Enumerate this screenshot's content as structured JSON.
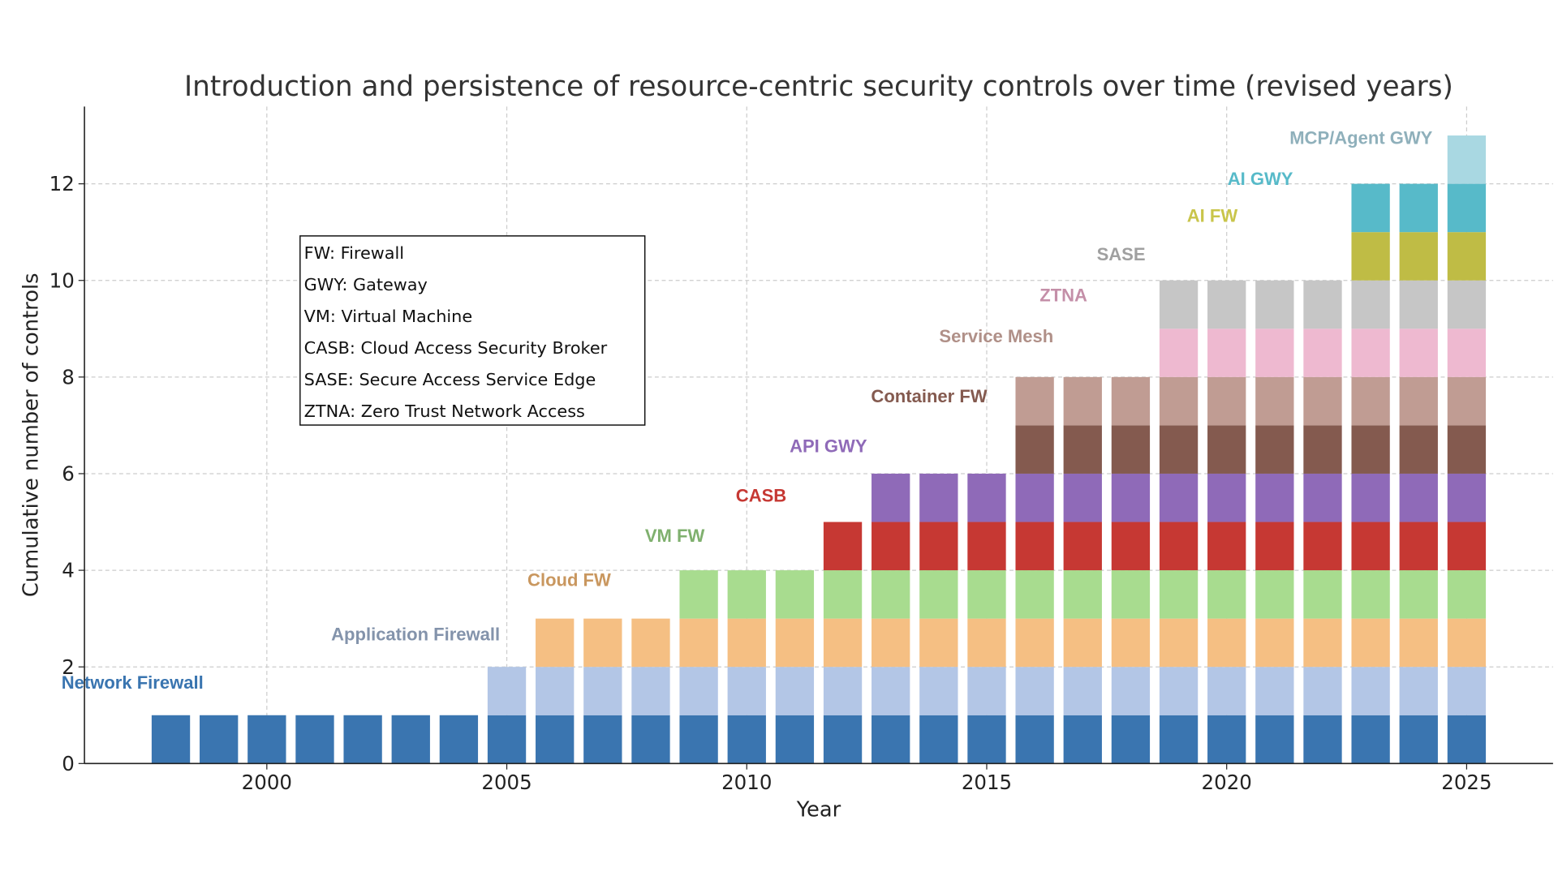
{
  "chart_data": {
    "type": "bar",
    "stacked": true,
    "title": "Introduction and persistence of resource-centric security controls over time (revised years)",
    "xlabel": "Year",
    "ylabel": "Cumulative number of controls",
    "xlim": [
      1996.2,
      2026.8
    ],
    "ylim": [
      0,
      13.6
    ],
    "xticks": [
      2000,
      2005,
      2010,
      2015,
      2020,
      2025
    ],
    "yticks": [
      0,
      2,
      4,
      6,
      8,
      10,
      12
    ],
    "grid": true,
    "years": [
      1998,
      1999,
      2000,
      2001,
      2002,
      2003,
      2004,
      2005,
      2006,
      2007,
      2008,
      2009,
      2010,
      2011,
      2012,
      2013,
      2014,
      2015,
      2016,
      2017,
      2018,
      2019,
      2020,
      2021,
      2022,
      2023,
      2024,
      2025
    ],
    "series": [
      {
        "name": "Network Firewall",
        "start_year": 1998,
        "color": "#3a75b0",
        "label_color": "#3a75b0",
        "label_x": 1997.2,
        "label_y": 1.67
      },
      {
        "name": "Application Firewall",
        "start_year": 2005,
        "color": "#b3c6e6",
        "label_color": "#8393ab",
        "label_x": 2003.1,
        "label_y": 2.67
      },
      {
        "name": "Cloud FW",
        "start_year": 2006,
        "color": "#f5bf83",
        "label_color": "#c9975f",
        "label_x": 2006.3,
        "label_y": 3.8
      },
      {
        "name": "VM FW",
        "start_year": 2009,
        "color": "#a8dc8f",
        "label_color": "#7fb06e",
        "label_x": 2008.5,
        "label_y": 4.71
      },
      {
        "name": "CASB",
        "start_year": 2012,
        "color": "#c63833",
        "label_color": "#c63833",
        "label_x": 2010.3,
        "label_y": 5.54
      },
      {
        "name": "API GWY",
        "start_year": 2013,
        "color": "#8f6ab8",
        "label_color": "#8f6ab8",
        "label_x": 2011.7,
        "label_y": 6.57
      },
      {
        "name": "Container FW",
        "start_year": 2016,
        "color": "#845a4f",
        "label_color": "#845a4f",
        "label_x": 2013.8,
        "label_y": 7.6
      },
      {
        "name": "Service Mesh",
        "start_year": 2016,
        "color": "#c09c93",
        "label_color": "#b09088",
        "label_x": 2015.2,
        "label_y": 8.84
      },
      {
        "name": "ZTNA",
        "start_year": 2019,
        "color": "#eeb9d0",
        "label_color": "#c48fa8",
        "label_x": 2016.6,
        "label_y": 9.69
      },
      {
        "name": "SASE",
        "start_year": 2019,
        "color": "#c6c6c6",
        "label_color": "#a0a0a0",
        "label_x": 2017.8,
        "label_y": 10.54
      },
      {
        "name": "AI FW",
        "start_year": 2023,
        "color": "#bfbc45",
        "label_color": "#c9c54a",
        "label_x": 2019.7,
        "label_y": 11.34
      },
      {
        "name": "AI GWY",
        "start_year": 2023,
        "color": "#57bac9",
        "label_color": "#57bac9",
        "label_x": 2020.7,
        "label_y": 12.1
      },
      {
        "name": "MCP/Agent GWY",
        "start_year": 2025,
        "color": "#a9d8e2",
        "label_color": "#8fb0bb",
        "label_x": 2022.8,
        "label_y": 12.95
      }
    ],
    "legend_box": [
      "FW: Firewall",
      "GWY: Gateway",
      "VM: Virtual Machine",
      "CASB: Cloud Access Security Broker",
      "SASE: Secure Access Service  Edge",
      "ZTNA: Zero Trust Network Access"
    ]
  }
}
